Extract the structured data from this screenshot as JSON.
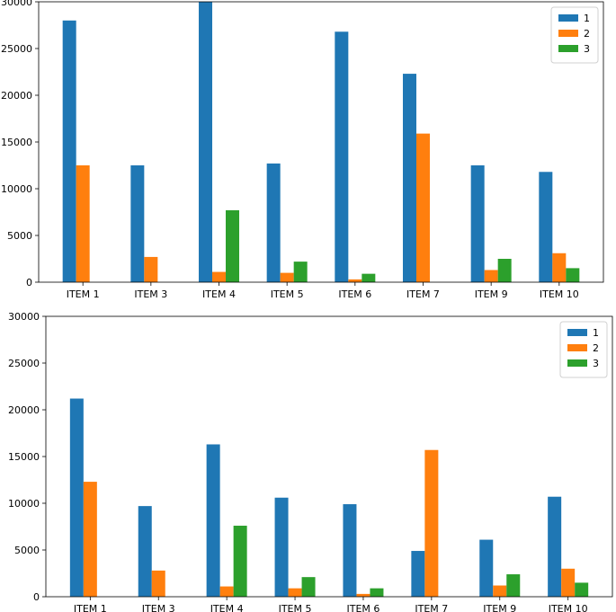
{
  "colors": {
    "1": "#1f77b4",
    "2": "#ff7f0e",
    "3": "#2ca02c"
  },
  "chart_data": [
    {
      "type": "bar",
      "title": "",
      "xlabel": "",
      "ylabel": "",
      "ylim": [
        0,
        30000
      ],
      "yticks": [
        0,
        5000,
        10000,
        15000,
        20000,
        25000,
        30000
      ],
      "categories": [
        "ITEM 1",
        "ITEM 3",
        "ITEM 4",
        "ITEM 5",
        "ITEM 6",
        "ITEM 7",
        "ITEM 9",
        "ITEM 10"
      ],
      "legend_position": "top-right",
      "series": [
        {
          "name": "1",
          "values": [
            28000,
            12500,
            30000,
            12700,
            26800,
            22300,
            12500,
            11800
          ]
        },
        {
          "name": "2",
          "values": [
            12500,
            2700,
            1100,
            1000,
            300,
            15900,
            1300,
            3100
          ]
        },
        {
          "name": "3",
          "values": [
            0,
            0,
            7700,
            2200,
            900,
            0,
            2500,
            1500
          ]
        }
      ]
    },
    {
      "type": "bar",
      "title": "",
      "xlabel": "",
      "ylabel": "",
      "ylim": [
        0,
        30000
      ],
      "yticks": [
        0,
        5000,
        10000,
        15000,
        20000,
        25000,
        30000
      ],
      "categories": [
        "ITEM 1",
        "ITEM 3",
        "ITEM 4",
        "ITEM 5",
        "ITEM 6",
        "ITEM 7",
        "ITEM 9",
        "ITEM 10"
      ],
      "legend_position": "top-right",
      "series": [
        {
          "name": "1",
          "values": [
            21200,
            9700,
            16300,
            10600,
            9900,
            4900,
            6100,
            10700
          ]
        },
        {
          "name": "2",
          "values": [
            12300,
            2800,
            1100,
            900,
            300,
            15700,
            1200,
            3000
          ]
        },
        {
          "name": "3",
          "values": [
            0,
            0,
            7600,
            2100,
            900,
            0,
            2400,
            1500
          ]
        }
      ]
    }
  ]
}
